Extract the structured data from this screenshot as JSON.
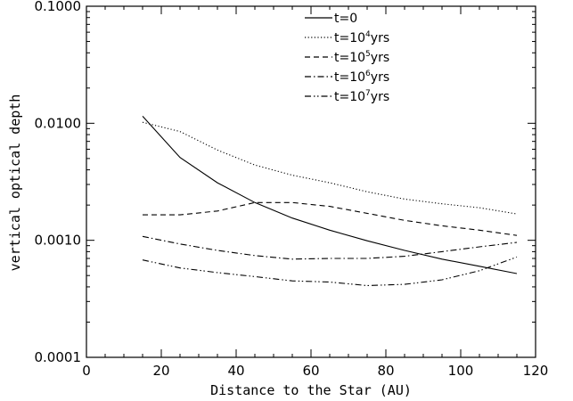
{
  "chart_data": {
    "type": "line",
    "xlabel": "Distance to the Star (AU)",
    "ylabel": "vertical optical depth",
    "xlim": [
      0,
      120
    ],
    "ylim": [
      0.0001,
      0.1
    ],
    "yscale": "log",
    "xticks": [
      0,
      20,
      40,
      60,
      80,
      100,
      120
    ],
    "xtick_labels": [
      "0",
      "20",
      "40",
      "60",
      "80",
      "100",
      "120"
    ],
    "yticks": [
      0.0001,
      0.001,
      0.01,
      0.1
    ],
    "ytick_labels": [
      "0.0001",
      "0.0010",
      "0.0100",
      "0.1000"
    ],
    "grid": false,
    "legend_position": "top-center",
    "series": [
      {
        "name": "t=0",
        "label_main": "t=0",
        "label_exp": "",
        "label_unit": "",
        "linestyle": "solid",
        "x": [
          15,
          25,
          35,
          45,
          55,
          65,
          75,
          85,
          95,
          105,
          115
        ],
        "y": [
          0.0115,
          0.0051,
          0.0031,
          0.0021,
          0.00155,
          0.00122,
          0.00099,
          0.00082,
          0.00069,
          0.0006,
          0.00052
        ]
      },
      {
        "name": "t=10^4yrs",
        "label_main": "t=10",
        "label_exp": "4",
        "label_unit": "yrs",
        "linestyle": "dotted",
        "x": [
          15,
          25,
          35,
          45,
          55,
          65,
          75,
          85,
          95,
          105,
          115
        ],
        "y": [
          0.0102,
          0.0085,
          0.0059,
          0.0044,
          0.0036,
          0.0031,
          0.0026,
          0.00225,
          0.00205,
          0.0019,
          0.00168
        ]
      },
      {
        "name": "t=10^5yrs",
        "label_main": "t=10",
        "label_exp": "5",
        "label_unit": "yrs",
        "linestyle": "dashed",
        "x": [
          15,
          25,
          35,
          45,
          55,
          65,
          75,
          85,
          95,
          105,
          115
        ],
        "y": [
          0.00165,
          0.00165,
          0.00178,
          0.0021,
          0.0021,
          0.00195,
          0.0017,
          0.00148,
          0.00133,
          0.00122,
          0.0011
        ]
      },
      {
        "name": "t=10^6yrs",
        "label_main": "t=10",
        "label_exp": "6",
        "label_unit": "yrs",
        "linestyle": "dashdot",
        "x": [
          15,
          25,
          35,
          45,
          55,
          65,
          75,
          85,
          95,
          105,
          115
        ],
        "y": [
          0.00108,
          0.00093,
          0.00082,
          0.00074,
          0.00069,
          0.0007,
          0.0007,
          0.00073,
          0.0008,
          0.00088,
          0.00096
        ]
      },
      {
        "name": "t=10^7yrs",
        "label_main": "t=10",
        "label_exp": "7",
        "label_unit": "yrs",
        "linestyle": "dashdotdot",
        "x": [
          15,
          25,
          35,
          45,
          55,
          65,
          75,
          85,
          95,
          105,
          115
        ],
        "y": [
          0.00068,
          0.00058,
          0.00053,
          0.00049,
          0.00045,
          0.00044,
          0.00041,
          0.00042,
          0.00046,
          0.00055,
          0.00072
        ]
      }
    ]
  }
}
